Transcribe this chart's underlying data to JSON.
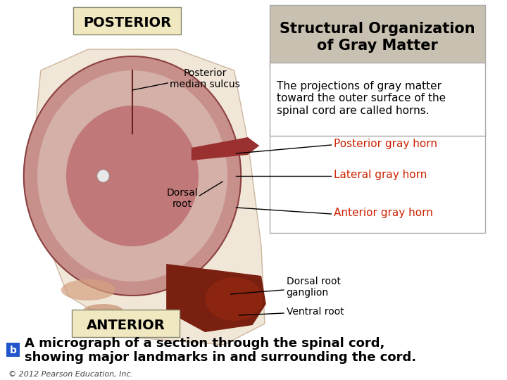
{
  "bg_color": "#ffffff",
  "title": "Structural Organization\nof Gray Matter",
  "title_box_color": "#c8c0b0",
  "title_fontsize": 15,
  "body_text": "The projections of gray matter\ntoward the outer surface of the\nspinal cord are called horns.",
  "body_fontsize": 11,
  "body_box_color": "#ffffff",
  "label_posterior": "POSTERIOR",
  "label_anterior": "ANTERIOR",
  "label_posterior_median": "Posterior\nmedian sulcus",
  "label_dorsal_root": "Dorsal\nroot",
  "label_dorsal_root_ganglion": "Dorsal root\nganglion",
  "label_ventral_root": "Ventral root",
  "label_posterior_horn": "Posterior gray horn",
  "label_lateral_horn": "Lateral gray horn",
  "label_anterior_horn": "Anterior gray horn",
  "red_color": "#cc2200",
  "black_color": "#000000",
  "caption_b_color": "#2255cc",
  "caption_text": "A micrograph of a section through the spinal cord,\nshowing major landmarks in and surrounding the cord.",
  "caption_fontsize": 13,
  "copyright_text": "© 2012 Pearson Education, Inc.",
  "info_box_border": "#aaaaaa"
}
